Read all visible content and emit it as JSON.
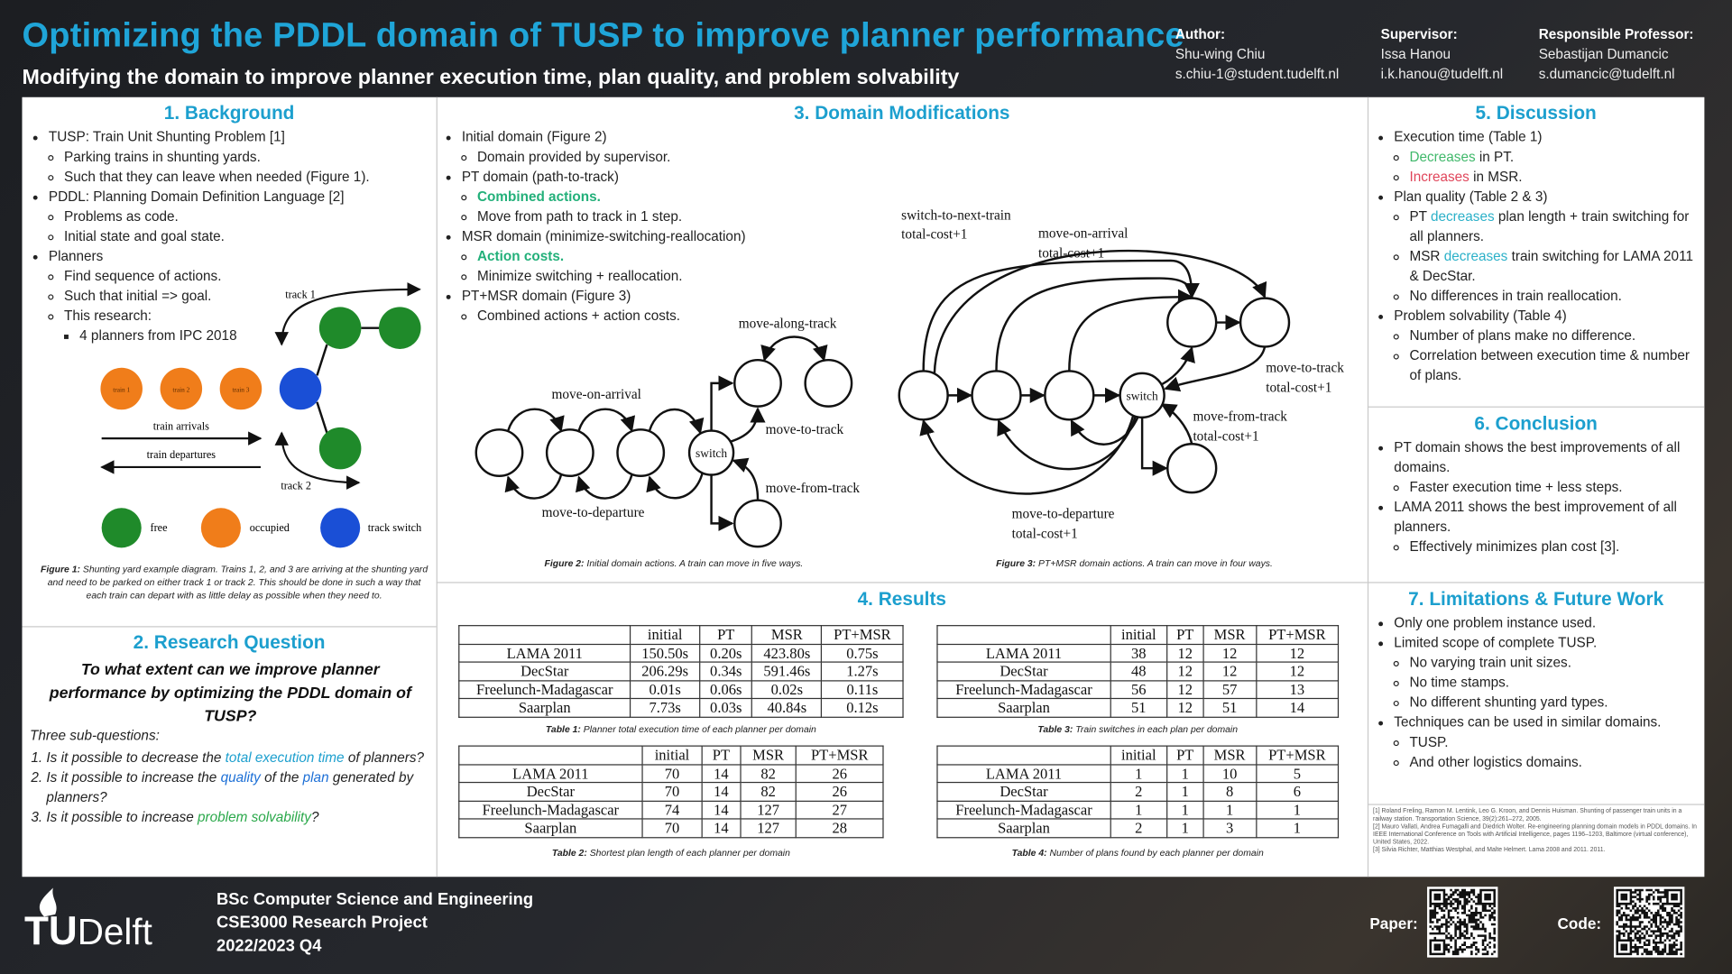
{
  "header": {
    "title": "Optimizing the PDDL domain of TUSP to improve planner performance",
    "subtitle": "Modifying the domain to improve planner execution time, plan quality, and problem solvability",
    "people": [
      {
        "role": "Author:",
        "name": "Shu-wing Chiu",
        "email": "s.chiu-1@student.tudelft.nl"
      },
      {
        "role": "Supervisor:",
        "name": "Issa Hanou",
        "email": "i.k.hanou@tudelft.nl"
      },
      {
        "role": "Responsible Professor:",
        "name": "Sebastijan Dumancic",
        "email": "s.dumancic@tudelft.nl"
      }
    ]
  },
  "background": {
    "heading": {
      "number": "1.",
      "title": "Background"
    },
    "items": [
      {
        "text": "TUSP: Train Unit Shunting Problem [1]",
        "sub": [
          {
            "text": "Parking trains in shunting yards."
          },
          {
            "text": "Such that they can leave when needed (Figure 1)."
          }
        ]
      },
      {
        "text": "PDDL: Planning Domain Definition Language [2]",
        "sub": [
          {
            "text": "Problems as code."
          },
          {
            "text": "Initial state and goal state."
          }
        ]
      },
      {
        "text": "Planners",
        "sub": [
          {
            "text": "Find sequence of actions."
          },
          {
            "text": "Such that initial => goal."
          },
          {
            "text": "This research:",
            "sub": [
              {
                "text": "4 planners from IPC 2018"
              }
            ]
          }
        ]
      }
    ]
  },
  "figure1": {
    "trains": [
      "train 1",
      "train 2",
      "train 3"
    ],
    "track1": "track 1",
    "track2": "track 2",
    "arrivals": "train arrivals",
    "departures": "train departures",
    "legend": [
      "free",
      "occupied",
      "track switch"
    ],
    "caption": {
      "label": "Figure 1:",
      "text": "Shunting yard example diagram. Trains 1, 2, and 3 are arriving at the shunting yard and need to be parked on either track 1 or track 2. This should be done in such a way that each train can depart with as little delay as possible when they need to."
    }
  },
  "research_question": {
    "heading": {
      "number": "2.",
      "title": "Research Question"
    },
    "question": "To what extent can we improve planner performance by optimizing the PDDL domain of TUSP?",
    "intro": "Three sub-questions:",
    "items": [
      {
        "text": [
          "Is it possible to decrease the ",
          {
            "text": "total execution time",
            "color": "#1c9fce"
          },
          " of planners?"
        ]
      },
      {
        "text": [
          "Is it possible to increase the ",
          {
            "text": "quality",
            "color": "#1c6fd6"
          },
          " of the ",
          {
            "text": "plan",
            "color": "#1c6fd6"
          },
          " generated by planners?"
        ]
      },
      {
        "text": [
          "Is it possible to increase ",
          {
            "text": "problem solvability",
            "color": "#2aa84a"
          },
          "?"
        ]
      }
    ]
  },
  "domain_modifications": {
    "heading": {
      "number": "3.",
      "title": "Domain Modifications"
    },
    "items": [
      {
        "text": "Initial domain (Figure 2)",
        "sub": [
          {
            "text": "Domain provided by supervisor."
          }
        ]
      },
      {
        "text": "PT domain (path-to-track)",
        "sub": [
          {
            "text": [
              {
                "text": "Combined actions.",
                "color": "#23b07a",
                "bold": true
              }
            ]
          },
          {
            "text": "Move from path to track in 1 step."
          }
        ]
      },
      {
        "text": "MSR domain (minimize-switching-reallocation)",
        "sub": [
          {
            "text": [
              {
                "text": "Action costs.",
                "color": "#23b07a",
                "bold": true
              }
            ]
          },
          {
            "text": "Minimize switching + reallocation."
          }
        ]
      },
      {
        "text": "PT+MSR domain (Figure 3)",
        "sub": [
          {
            "text": "Combined actions + action costs."
          }
        ]
      }
    ]
  },
  "figure2": {
    "switch": "switch",
    "labels": [
      "move-along-track",
      "move-on-arrival",
      "move-to-track",
      "move-from-track",
      "move-to-departure"
    ],
    "caption": {
      "label": "Figure 2:",
      "text": "Initial domain actions. A train can move in five ways."
    }
  },
  "figure3": {
    "switch": "switch",
    "labels": [
      {
        "action": "switch-to-next-train",
        "cost": "total-cost+1"
      },
      {
        "action": "move-on-arrival",
        "cost": "total-cost+1"
      },
      {
        "action": "move-to-track",
        "cost": "total-cost+1"
      },
      {
        "action": "move-from-track",
        "cost": "total-cost+1"
      },
      {
        "action": "move-to-departure",
        "cost": "total-cost+1"
      }
    ],
    "caption": {
      "label": "Figure 3:",
      "text": "PT+MSR domain actions. A train can move in four ways."
    }
  },
  "results": {
    "heading": {
      "number": "4.",
      "title": "Results"
    },
    "tables": [
      {
        "columns": [
          "initial",
          "PT",
          "MSR",
          "PT+MSR"
        ],
        "rows": [
          {
            "name": "LAMA 2011",
            "values": [
              "150.50s",
              "0.20s",
              "423.80s",
              "0.75s"
            ]
          },
          {
            "name": "DecStar",
            "values": [
              "206.29s",
              "0.34s",
              "591.46s",
              "1.27s"
            ]
          },
          {
            "name": "Freelunch-Madagascar",
            "values": [
              "0.01s",
              "0.06s",
              "0.02s",
              "0.11s"
            ]
          },
          {
            "name": "Saarplan",
            "values": [
              "7.73s",
              "0.03s",
              "40.84s",
              "0.12s"
            ]
          }
        ],
        "caption": {
          "label": "Table 1:",
          "text": "Planner total execution time of each planner per domain"
        }
      },
      {
        "columns": [
          "initial",
          "PT",
          "MSR",
          "PT+MSR"
        ],
        "rows": [
          {
            "name": "LAMA 2011",
            "values": [
              70,
              14,
              82,
              26
            ]
          },
          {
            "name": "DecStar",
            "values": [
              70,
              14,
              82,
              26
            ]
          },
          {
            "name": "Freelunch-Madagascar",
            "values": [
              74,
              14,
              127,
              27
            ]
          },
          {
            "name": "Saarplan",
            "values": [
              70,
              14,
              127,
              28
            ]
          }
        ],
        "caption": {
          "label": "Table 2:",
          "text": "Shortest plan length of each planner per domain"
        }
      },
      {
        "columns": [
          "initial",
          "PT",
          "MSR",
          "PT+MSR"
        ],
        "rows": [
          {
            "name": "LAMA 2011",
            "values": [
              38,
              12,
              12,
              12
            ]
          },
          {
            "name": "DecStar",
            "values": [
              48,
              12,
              12,
              12
            ]
          },
          {
            "name": "Freelunch-Madagascar",
            "values": [
              56,
              12,
              57,
              13
            ]
          },
          {
            "name": "Saarplan",
            "values": [
              51,
              12,
              51,
              14
            ]
          }
        ],
        "caption": {
          "label": "Table 3:",
          "text": "Train switches in each plan per domain"
        }
      },
      {
        "columns": [
          "initial",
          "PT",
          "MSR",
          "PT+MSR"
        ],
        "rows": [
          {
            "name": "LAMA 2011",
            "values": [
              1,
              1,
              10,
              5
            ]
          },
          {
            "name": "DecStar",
            "values": [
              2,
              1,
              8,
              6
            ]
          },
          {
            "name": "Freelunch-Madagascar",
            "values": [
              1,
              1,
              1,
              1
            ]
          },
          {
            "name": "Saarplan",
            "values": [
              2,
              1,
              3,
              1
            ]
          }
        ],
        "caption": {
          "label": "Table 4:",
          "text": "Number of plans found by each planner per domain"
        }
      }
    ]
  },
  "discussion": {
    "heading": {
      "number": "5.",
      "title": "Discussion"
    },
    "items": [
      {
        "text": "Execution time (Table 1)",
        "sub": [
          {
            "text": [
              {
                "text": "Decreases",
                "color": "#3fb86a"
              },
              " in PT."
            ]
          },
          {
            "text": [
              {
                "text": "Increases",
                "color": "#e0455a"
              },
              " in MSR."
            ]
          }
        ]
      },
      {
        "text": "Plan quality (Table 2 & 3)",
        "sub": [
          {
            "text": [
              "PT ",
              {
                "text": "decreases",
                "color": "#2ab0c8"
              },
              " plan length + train switching for all planners."
            ]
          },
          {
            "text": [
              "MSR ",
              {
                "text": "decreases",
                "color": "#2ab0c8"
              },
              " train switching for LAMA 2011 & DecStar."
            ]
          },
          {
            "text": "No differences in train reallocation."
          }
        ]
      },
      {
        "text": "Problem solvability (Table 4)",
        "sub": [
          {
            "text": "Number of plans make no difference."
          },
          {
            "text": "Correlation between execution time & number of plans."
          }
        ]
      }
    ]
  },
  "conclusion": {
    "heading": {
      "number": "6.",
      "title": "Conclusion"
    },
    "items": [
      {
        "text": "PT domain shows the best improvements of all domains.",
        "sub": [
          {
            "text": "Faster execution time + less steps."
          }
        ]
      },
      {
        "text": "LAMA 2011 shows the best improvement of all planners.",
        "sub": [
          {
            "text": "Effectively minimizes plan cost [3]."
          }
        ]
      }
    ]
  },
  "limitations": {
    "heading": {
      "number": "7.",
      "title": "Limitations & Future Work"
    },
    "items": [
      {
        "text": "Only one problem instance used."
      },
      {
        "text": "Limited scope of complete TUSP.",
        "sub": [
          {
            "text": "No varying train unit sizes."
          },
          {
            "text": "No time stamps."
          },
          {
            "text": "No different shunting yard types."
          }
        ]
      },
      {
        "text": "Techniques can be used in similar domains.",
        "sub": [
          {
            "text": "TUSP."
          },
          {
            "text": "And other logistics domains."
          }
        ]
      }
    ]
  },
  "references": [
    "[1] Roland Freling, Ramon M. Lentink, Leo G. Kroon, and Dennis Huisman. Shunting of passenger train units in a railway station. Transportation Science, 39(2):261–272, 2005.",
    "[2] Mauro Vallati, Andrea Fumagalli and Diedrich Wolter. Re-engineering planning domain models in PDDL domains. In IEEE International Conference on Tools with Artificial Intelligence, pages 1196–1203, Baltimore (virtual conference), United States, 2022.",
    "[3] Silvia Richter, Matthias Westphal, and Malte Helmert. Lama 2008 and 2011. 2011."
  ],
  "footer": {
    "logo": {
      "tu": "TU",
      "delft": "Delft"
    },
    "lines": [
      "BSc Computer Science and Engineering",
      "CSE3000 Research Project",
      "2022/2023 Q4"
    ],
    "paper": "Paper:",
    "code": "Code:"
  }
}
